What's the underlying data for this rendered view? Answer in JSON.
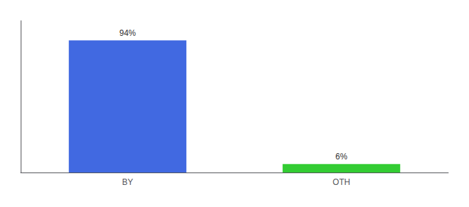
{
  "chart_data": {
    "type": "bar",
    "categories": [
      "BY",
      "OTH"
    ],
    "values": [
      94,
      6
    ],
    "value_labels": [
      "94%",
      "6%"
    ],
    "colors": [
      "#4169e1",
      "#33cc33"
    ],
    "data_labels": true,
    "ylim": [
      0,
      108
    ],
    "tick_labels": "x",
    "grid": false
  }
}
